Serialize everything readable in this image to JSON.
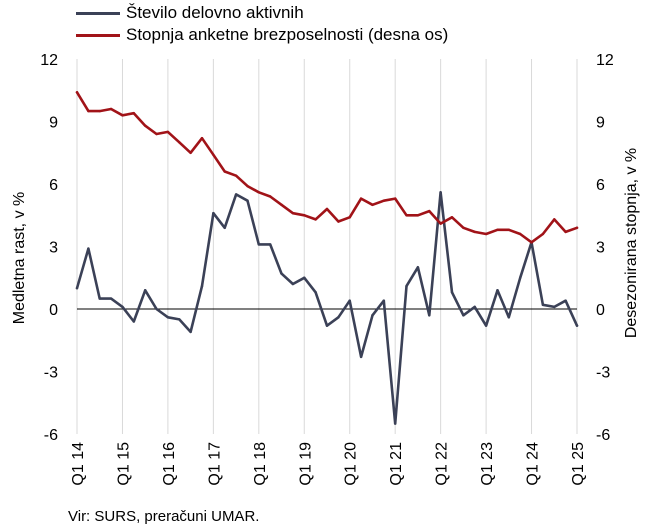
{
  "colors": {
    "series_activity": "#3b4157",
    "series_unemployment": "#a11318",
    "grid": "#d9d9d9",
    "zero_line": "#000000"
  },
  "source": "Vir: SURS, preračuni UMAR.",
  "chart_data": {
    "type": "line",
    "x": [
      "Q1 14",
      "Q2 14",
      "Q3 14",
      "Q4 14",
      "Q1 15",
      "Q2 15",
      "Q3 15",
      "Q4 15",
      "Q1 16",
      "Q2 16",
      "Q3 16",
      "Q4 16",
      "Q1 17",
      "Q2 17",
      "Q3 17",
      "Q4 17",
      "Q1 18",
      "Q2 18",
      "Q3 18",
      "Q4 18",
      "Q1 19",
      "Q2 19",
      "Q3 19",
      "Q4 19",
      "Q1 20",
      "Q2 20",
      "Q3 20",
      "Q4 20",
      "Q1 21",
      "Q2 21",
      "Q3 21",
      "Q4 21",
      "Q1 22",
      "Q2 22",
      "Q3 22",
      "Q4 22",
      "Q1 23",
      "Q2 23",
      "Q3 23",
      "Q4 23",
      "Q1 24",
      "Q2 24",
      "Q3 24",
      "Q4 24",
      "Q1 25"
    ],
    "xtick_labels": [
      "Q1 14",
      "Q1 15",
      "Q1 16",
      "Q1 17",
      "Q1 18",
      "Q1 19",
      "Q1 20",
      "Q1 21",
      "Q1 22",
      "Q1 23",
      "Q1 24",
      "Q1 25"
    ],
    "ylabel": "Medletna rast, v %",
    "ylabel_right": "Desezonirana stopnja, v %",
    "ylim": [
      -6,
      12
    ],
    "ylim_right": [
      -6,
      12
    ],
    "yticks": [
      -6,
      -3,
      0,
      3,
      6,
      9,
      12
    ],
    "grid": "vertical",
    "legend_position": "top-left",
    "series": [
      {
        "name": "Število delovno aktivnih",
        "axis": "left",
        "values": [
          1.0,
          2.9,
          0.5,
          0.5,
          0.1,
          -0.6,
          0.9,
          0.0,
          -0.4,
          -0.5,
          -1.1,
          1.1,
          4.6,
          3.9,
          5.5,
          5.2,
          3.1,
          3.1,
          1.7,
          1.2,
          1.5,
          0.8,
          -0.8,
          -0.4,
          0.4,
          -2.3,
          -0.3,
          0.4,
          -5.5,
          1.1,
          2.0,
          -0.3,
          5.6,
          0.8,
          -0.3,
          0.1,
          -0.8,
          0.9,
          -0.4,
          1.5,
          3.2,
          0.2,
          0.1,
          0.4,
          -0.8
        ]
      },
      {
        "name": "Stopnja anketne brezposelnosti (desna os)",
        "axis": "right",
        "values": [
          10.4,
          9.5,
          9.5,
          9.6,
          9.3,
          9.4,
          8.8,
          8.4,
          8.5,
          8.0,
          7.5,
          8.2,
          7.4,
          6.6,
          6.4,
          5.9,
          5.6,
          5.4,
          5.0,
          4.6,
          4.5,
          4.3,
          4.8,
          4.2,
          4.4,
          5.3,
          5.0,
          5.2,
          5.3,
          4.5,
          4.5,
          4.7,
          4.1,
          4.4,
          3.9,
          3.7,
          3.6,
          3.8,
          3.8,
          3.6,
          3.2,
          3.6,
          4.3,
          3.7,
          3.9
        ]
      }
    ]
  }
}
